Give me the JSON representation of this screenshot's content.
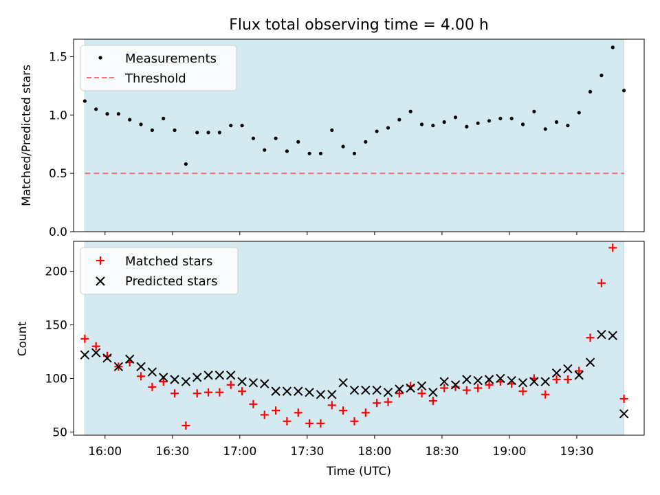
{
  "figure_title": "Flux total observing time = 4.00 h",
  "x_label": "Time (UTC)",
  "x_ticks": [
    "16:00",
    "16:30",
    "17:00",
    "17:30",
    "18:00",
    "18:30",
    "19:00",
    "19:30"
  ],
  "colors": {
    "shade": "#d4eaf0",
    "measurement": "#000000",
    "threshold": "#f07a7a",
    "matched": "#ff0000",
    "predicted": "#000000"
  },
  "chart_data": [
    {
      "type": "scatter",
      "title": "Flux total observing time = 4.00 h",
      "xlabel": "",
      "ylabel": "Matched/Predicted stars",
      "ylim": [
        0,
        1.65
      ],
      "yticks": [
        0,
        0.5,
        1.0,
        1.5
      ],
      "ytick_labels": [
        "0.0",
        "0.5",
        "1.0",
        "1.5"
      ],
      "xlim": [
        "15:46",
        "20:00"
      ],
      "shaded_span": [
        "15:51",
        "19:51"
      ],
      "legend": "top-left",
      "series": [
        {
          "name": "Measurements",
          "marker": "dot",
          "x": [
            "15:51",
            "15:56",
            "16:01",
            "16:06",
            "16:11",
            "16:16",
            "16:21",
            "16:26",
            "16:31",
            "16:36",
            "16:41",
            "16:46",
            "16:51",
            "16:56",
            "17:01",
            "17:06",
            "17:11",
            "17:16",
            "17:21",
            "17:26",
            "17:31",
            "17:36",
            "17:41",
            "17:46",
            "17:51",
            "17:56",
            "18:01",
            "18:06",
            "18:11",
            "18:16",
            "18:21",
            "18:26",
            "18:31",
            "18:36",
            "18:41",
            "18:46",
            "18:51",
            "18:56",
            "19:01",
            "19:06",
            "19:11",
            "19:16",
            "19:21",
            "19:26",
            "19:31",
            "19:36",
            "19:41",
            "19:46",
            "19:51"
          ],
          "y": [
            1.12,
            1.05,
            1.01,
            1.01,
            0.96,
            0.92,
            0.87,
            0.97,
            0.87,
            0.58,
            0.85,
            0.85,
            0.85,
            0.91,
            0.91,
            0.8,
            0.7,
            0.8,
            0.69,
            0.77,
            0.67,
            0.67,
            0.87,
            0.73,
            0.67,
            0.77,
            0.86,
            0.89,
            0.96,
            1.03,
            0.92,
            0.91,
            0.94,
            0.98,
            0.9,
            0.93,
            0.95,
            0.97,
            0.97,
            0.92,
            1.03,
            0.88,
            0.94,
            0.91,
            1.02,
            1.2,
            1.34,
            1.58,
            1.21
          ]
        },
        {
          "name": "Threshold",
          "style": "dashed",
          "x": [
            "15:51",
            "19:51"
          ],
          "y": [
            0.5,
            0.5
          ]
        }
      ]
    },
    {
      "type": "scatter",
      "title": "",
      "xlabel": "Time (UTC)",
      "ylabel": "Count",
      "ylim": [
        47,
        228
      ],
      "yticks": [
        50,
        100,
        150,
        200
      ],
      "ytick_labels": [
        "50",
        "100",
        "150",
        "200"
      ],
      "xlim": [
        "15:46",
        "20:00"
      ],
      "shaded_span": [
        "15:51",
        "19:51"
      ],
      "legend": "top-left",
      "series": [
        {
          "name": "Matched stars",
          "marker": "plus",
          "x": [
            "15:51",
            "15:56",
            "16:01",
            "16:06",
            "16:11",
            "16:16",
            "16:21",
            "16:26",
            "16:31",
            "16:36",
            "16:41",
            "16:46",
            "16:51",
            "16:56",
            "17:01",
            "17:06",
            "17:11",
            "17:16",
            "17:21",
            "17:26",
            "17:31",
            "17:36",
            "17:41",
            "17:46",
            "17:51",
            "17:56",
            "18:01",
            "18:06",
            "18:11",
            "18:16",
            "18:21",
            "18:26",
            "18:31",
            "18:36",
            "18:41",
            "18:46",
            "18:51",
            "18:56",
            "19:01",
            "19:06",
            "19:11",
            "19:16",
            "19:21",
            "19:26",
            "19:31",
            "19:36",
            "19:41",
            "19:46",
            "19:51"
          ],
          "y": [
            137,
            130,
            121,
            111,
            115,
            102,
            92,
            97,
            86,
            56,
            86,
            87,
            87,
            94,
            88,
            76,
            66,
            70,
            60,
            68,
            58,
            58,
            75,
            70,
            60,
            68,
            77,
            78,
            86,
            93,
            86,
            79,
            91,
            92,
            89,
            91,
            94,
            97,
            95,
            88,
            100,
            85,
            99,
            99,
            107,
            138,
            189,
            222,
            81
          ]
        },
        {
          "name": "Predicted stars",
          "marker": "x",
          "x": [
            "15:51",
            "15:56",
            "16:01",
            "16:06",
            "16:11",
            "16:16",
            "16:21",
            "16:26",
            "16:31",
            "16:36",
            "16:41",
            "16:46",
            "16:51",
            "16:56",
            "17:01",
            "17:06",
            "17:11",
            "17:16",
            "17:21",
            "17:26",
            "17:31",
            "17:36",
            "17:41",
            "17:46",
            "17:51",
            "17:56",
            "18:01",
            "18:06",
            "18:11",
            "18:16",
            "18:21",
            "18:26",
            "18:31",
            "18:36",
            "18:41",
            "18:46",
            "18:51",
            "18:56",
            "19:01",
            "19:06",
            "19:11",
            "19:16",
            "19:21",
            "19:26",
            "19:31",
            "19:36",
            "19:41",
            "19:46",
            "19:51"
          ],
          "y": [
            122,
            124,
            119,
            111,
            118,
            111,
            106,
            101,
            99,
            97,
            101,
            103,
            103,
            103,
            97,
            96,
            95,
            88,
            88,
            88,
            87,
            85,
            85,
            96,
            89,
            89,
            89,
            87,
            90,
            91,
            93,
            87,
            97,
            94,
            99,
            98,
            99,
            100,
            98,
            96,
            97,
            97,
            105,
            109,
            103,
            115,
            141,
            140,
            67
          ]
        }
      ]
    }
  ]
}
